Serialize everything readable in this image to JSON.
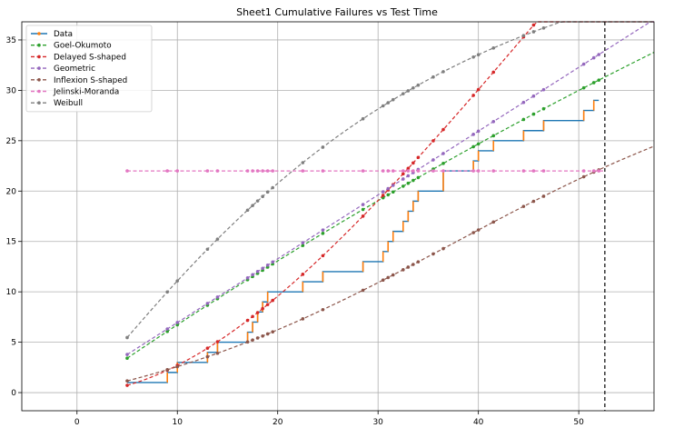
{
  "chart_data": {
    "type": "line",
    "title": "Sheet1 Cumulative Failures vs Test Time",
    "xlabel": "",
    "ylabel": "",
    "xlim": [
      -5.5,
      57.5
    ],
    "ylim": [
      -1.8,
      36.8
    ],
    "xticks": [
      0,
      10,
      20,
      30,
      40,
      50
    ],
    "yticks": [
      0,
      5,
      10,
      15,
      20,
      25,
      30,
      35
    ],
    "grid": true,
    "legend_position": "top-left",
    "vline": {
      "x": 52.6,
      "color": "#000000",
      "style": "dashed"
    },
    "colors": {
      "data": "#1f77b4",
      "data_marker": "#ff7f0e",
      "goel_okumoto": "#2ca02c",
      "delayed_s": "#d62728",
      "geometric": "#9467bd",
      "inflexion_s": "#8c564b",
      "jelinski_moranda": "#e377c2",
      "weibull": "#7f7f7f"
    },
    "data_times": [
      5.0,
      9.0,
      10.0,
      13.0,
      14.0,
      17.0,
      17.5,
      18.0,
      18.5,
      19.0,
      19.5,
      22.5,
      24.5,
      28.5,
      30.5,
      31.0,
      31.5,
      32.5,
      33.0,
      33.5,
      34.0,
      35.5,
      36.5,
      39.5,
      40.0,
      41.5,
      44.5,
      45.5,
      46.5,
      50.5,
      51.5,
      52.0
    ],
    "series": [
      {
        "name": "Data",
        "type": "step",
        "x": [
          5.0,
          9.0,
          10.0,
          13.0,
          14.0,
          17.0,
          17.5,
          18.0,
          18.5,
          19.0,
          19.5,
          22.5,
          24.5,
          28.5,
          30.5,
          31.0,
          31.5,
          32.5,
          33.0,
          33.5,
          34.0,
          35.5,
          36.5,
          39.5,
          40.0,
          41.5,
          44.5,
          45.5,
          46.5,
          50.5,
          51.5,
          52.0
        ],
        "y": [
          1,
          2,
          3,
          4,
          5,
          6,
          7,
          8,
          9,
          10,
          10,
          11,
          12,
          13,
          14,
          15,
          16,
          17,
          18,
          19,
          20,
          20,
          22,
          23,
          24,
          25,
          26,
          26,
          27,
          28,
          29,
          29
        ]
      },
      {
        "name": "Goel-Okumoto",
        "model": {
          "kind": "go",
          "a": 117.07,
          "b": 0.005919
        }
      },
      {
        "name": "Delayed S-shaped",
        "model": {
          "kind": "ds",
          "a": 170,
          "b": 0.019
        }
      },
      {
        "name": "Geometric",
        "model": {
          "kind": "geo",
          "a": 0.6333,
          "b": 0.6167
        }
      },
      {
        "name": "Inflexion S-shaped",
        "model": {
          "kind": "is",
          "a": 34.0,
          "b": 0.0553,
          "psi": 8.0
        }
      },
      {
        "name": "Jelinski-Moranda",
        "model": {
          "kind": "const",
          "value": 22.0
        }
      },
      {
        "name": "Weibull",
        "model": {
          "kind": "weib",
          "a": 45.8,
          "b": 0.02077,
          "c": 1.125
        }
      }
    ]
  }
}
